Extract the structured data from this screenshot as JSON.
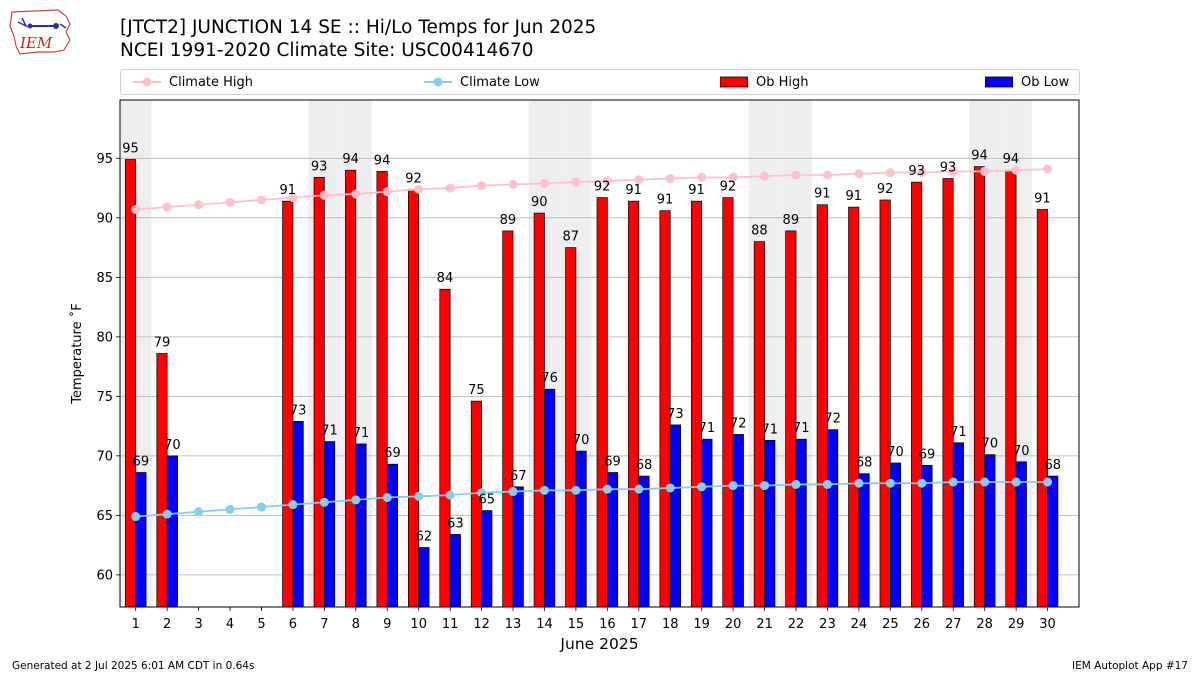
{
  "header": {
    "logo_text": "IEM",
    "title_line1": "[JTCT2] JUNCTION 14 SE :: Hi/Lo Temps for Jun 2025",
    "title_line2": "NCEI 1991-2020 Climate Site: USC00414670"
  },
  "legend": {
    "items": [
      {
        "label": "Climate High",
        "color": "#ffc0cb",
        "kind": "line"
      },
      {
        "label": "Climate Low",
        "color": "#87ceeb",
        "kind": "line"
      },
      {
        "label": "Ob High",
        "color": "#ff0000",
        "kind": "bar"
      },
      {
        "label": "Ob Low",
        "color": "#0000ff",
        "kind": "bar"
      }
    ]
  },
  "footer": {
    "left": "Generated at 2 Jul 2025 6:01 AM CDT in 0.64s",
    "right": "IEM Autoplot App #17"
  },
  "chart_data": {
    "type": "bar",
    "xlabel": "June 2025",
    "ylabel": "Temperature ˚F",
    "ylim": [
      57.3,
      99.9
    ],
    "yticks": [
      60,
      65,
      70,
      75,
      80,
      85,
      90,
      95
    ],
    "grid": true,
    "legend_position": "top",
    "categories": [
      "1",
      "2",
      "3",
      "4",
      "5",
      "6",
      "7",
      "8",
      "9",
      "10",
      "11",
      "12",
      "13",
      "14",
      "15",
      "16",
      "17",
      "18",
      "19",
      "20",
      "21",
      "22",
      "23",
      "24",
      "25",
      "26",
      "27",
      "28",
      "29",
      "30"
    ],
    "shaded_days": [
      1,
      7,
      8,
      14,
      15,
      21,
      22,
      28,
      29
    ],
    "series": [
      {
        "name": "Ob High",
        "kind": "bar",
        "color": "#ff0000",
        "values": [
          95,
          79,
          null,
          null,
          null,
          91,
          93,
          94,
          94,
          92,
          84,
          75,
          89,
          90,
          87,
          92,
          91,
          91,
          91,
          92,
          88,
          89,
          91,
          91,
          92,
          93,
          93,
          94,
          94,
          91
        ],
        "bar_values": [
          94.9,
          78.6,
          null,
          null,
          null,
          91.4,
          93.4,
          94.0,
          93.9,
          92.4,
          84.0,
          74.6,
          88.9,
          90.4,
          87.5,
          91.7,
          91.4,
          90.6,
          91.4,
          91.7,
          88.0,
          88.9,
          91.1,
          90.9,
          91.5,
          93.0,
          93.3,
          94.3,
          94.0,
          90.7
        ]
      },
      {
        "name": "Ob Low",
        "kind": "bar",
        "color": "#0000ff",
        "values": [
          69,
          70,
          null,
          null,
          null,
          73,
          71,
          71,
          69,
          62,
          63,
          65,
          67,
          76,
          70,
          69,
          68,
          73,
          71,
          72,
          71,
          71,
          72,
          68,
          70,
          69,
          71,
          70,
          70,
          68
        ],
        "bar_values": [
          68.6,
          70.0,
          null,
          null,
          null,
          72.9,
          71.2,
          71.0,
          69.3,
          62.3,
          63.4,
          65.4,
          67.4,
          75.6,
          70.4,
          68.6,
          68.3,
          72.6,
          71.4,
          71.8,
          71.3,
          71.4,
          72.2,
          68.5,
          69.4,
          69.2,
          71.1,
          70.1,
          69.5,
          68.3
        ]
      },
      {
        "name": "Climate High",
        "kind": "line",
        "color": "#ffc0cb",
        "values": [
          90.7,
          90.9,
          91.1,
          91.3,
          91.5,
          91.7,
          91.9,
          92.0,
          92.2,
          92.4,
          92.5,
          92.7,
          92.8,
          92.9,
          93.0,
          93.1,
          93.2,
          93.3,
          93.4,
          93.4,
          93.5,
          93.6,
          93.6,
          93.7,
          93.8,
          93.8,
          93.9,
          93.9,
          94.0,
          94.1
        ]
      },
      {
        "name": "Climate Low",
        "kind": "line",
        "color": "#87ceeb",
        "values": [
          64.9,
          65.1,
          65.3,
          65.5,
          65.7,
          65.9,
          66.1,
          66.3,
          66.5,
          66.6,
          66.7,
          66.9,
          67.0,
          67.1,
          67.1,
          67.2,
          67.2,
          67.3,
          67.4,
          67.5,
          67.5,
          67.6,
          67.6,
          67.7,
          67.7,
          67.7,
          67.8,
          67.8,
          67.8,
          67.8
        ]
      }
    ]
  }
}
